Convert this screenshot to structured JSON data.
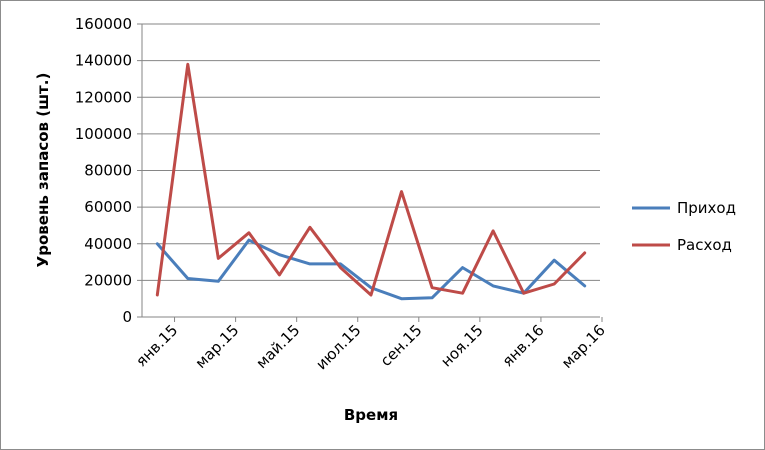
{
  "chart_data": {
    "type": "line",
    "title": "",
    "xlabel": "Время",
    "ylabel": "Уровень запасов (шт.)",
    "ylim": [
      0,
      160000
    ],
    "yticks": [
      0,
      20000,
      40000,
      60000,
      80000,
      100000,
      120000,
      140000,
      160000
    ],
    "grid": true,
    "legend": "right",
    "x": [
      "янв.15",
      "фев.15",
      "мар.15",
      "апр.15",
      "май.15",
      "июн.15",
      "июл.15",
      "авг.15",
      "сен.15",
      "окт.15",
      "ноя.15",
      "дек.15",
      "янв.16",
      "фев.16",
      "мар.16"
    ],
    "xticks": [
      "янв.15",
      "мар.15",
      "май.15",
      "июл.15",
      "сен.15",
      "ноя.15",
      "янв.16",
      "мар.16"
    ],
    "series": [
      {
        "name": "Приход",
        "color": "#4a7ebb",
        "values": [
          40000,
          21000,
          19500,
          42000,
          34000,
          29000,
          29000,
          16000,
          10000,
          10500,
          27000,
          17000,
          13000,
          31000,
          17000
        ]
      },
      {
        "name": "Расход",
        "color": "#be4b48",
        "values": [
          12000,
          138000,
          32000,
          46000,
          23000,
          49000,
          27000,
          12000,
          68500,
          16000,
          13000,
          47000,
          13000,
          18000,
          35000
        ]
      }
    ]
  }
}
